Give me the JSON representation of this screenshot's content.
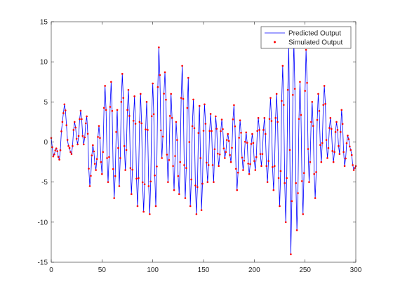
{
  "chart_data": {
    "type": "line",
    "title": "",
    "xlabel": "",
    "ylabel": "",
    "xlim": [
      0,
      300
    ],
    "ylim": [
      -15,
      15
    ],
    "x_ticks": [
      0,
      50,
      100,
      150,
      200,
      250,
      300
    ],
    "y_ticks": [
      -15,
      -10,
      -5,
      0,
      5,
      10,
      15
    ],
    "x_tick_labels": [
      "0",
      "50",
      "100",
      "150",
      "200",
      "250",
      "300"
    ],
    "y_tick_labels": [
      "-15",
      "-10",
      "-5",
      "0",
      "5",
      "10",
      "15"
    ],
    "grid": false,
    "legend_position": "top-right",
    "x_step": 1,
    "series": [
      {
        "name": "Predicted Output",
        "style": "line",
        "color": "#0000ff",
        "values": []
      },
      {
        "name": "Simulated Output",
        "style": "markers",
        "color": "#ff0000",
        "values": []
      }
    ],
    "peaks": [
      {
        "x": 0,
        "y": 0.5
      },
      {
        "x": 2,
        "y": -1.8
      },
      {
        "x": 5,
        "y": -0.8
      },
      {
        "x": 8,
        "y": -2.2
      },
      {
        "x": 11,
        "y": 2.5
      },
      {
        "x": 13,
        "y": 4.7
      },
      {
        "x": 17,
        "y": -0.5
      },
      {
        "x": 20,
        "y": -1.5
      },
      {
        "x": 23,
        "y": 2.5
      },
      {
        "x": 26,
        "y": -0.3
      },
      {
        "x": 29,
        "y": 3.9
      },
      {
        "x": 32,
        "y": -0.3
      },
      {
        "x": 35,
        "y": 3.2
      },
      {
        "x": 38,
        "y": -5.5
      },
      {
        "x": 41,
        "y": -0.4
      },
      {
        "x": 44,
        "y": -3.5
      },
      {
        "x": 47,
        "y": 2.0
      },
      {
        "x": 50,
        "y": -4.0
      },
      {
        "x": 53,
        "y": 7.0
      },
      {
        "x": 56,
        "y": -5.0
      },
      {
        "x": 59,
        "y": 7.5
      },
      {
        "x": 62,
        "y": -7.0
      },
      {
        "x": 65,
        "y": 4.0
      },
      {
        "x": 67,
        "y": -5.5
      },
      {
        "x": 70,
        "y": 8.5
      },
      {
        "x": 73,
        "y": -3.5
      },
      {
        "x": 76,
        "y": 6.5
      },
      {
        "x": 79,
        "y": -6.5
      },
      {
        "x": 82,
        "y": 5.7
      },
      {
        "x": 85,
        "y": -8.0
      },
      {
        "x": 88,
        "y": 6.0
      },
      {
        "x": 91,
        "y": -8.7
      },
      {
        "x": 94,
        "y": 5.0
      },
      {
        "x": 97,
        "y": -9.0
      },
      {
        "x": 100,
        "y": 7.3
      },
      {
        "x": 103,
        "y": -8.0
      },
      {
        "x": 106,
        "y": 11.8
      },
      {
        "x": 109,
        "y": -2.0
      },
      {
        "x": 112,
        "y": 8.7
      },
      {
        "x": 115,
        "y": -5.0
      },
      {
        "x": 118,
        "y": 6.0
      },
      {
        "x": 121,
        "y": -6.0
      },
      {
        "x": 123,
        "y": 2.5
      },
      {
        "x": 126,
        "y": -6.5
      },
      {
        "x": 129,
        "y": 9.5
      },
      {
        "x": 132,
        "y": -7.0
      },
      {
        "x": 135,
        "y": 8.0
      },
      {
        "x": 137,
        "y": -8.0
      },
      {
        "x": 140,
        "y": 5.3
      },
      {
        "x": 143,
        "y": -9.0
      },
      {
        "x": 146,
        "y": 4.5
      },
      {
        "x": 148,
        "y": -8.5
      },
      {
        "x": 151,
        "y": 4.7
      },
      {
        "x": 154,
        "y": -5.0
      },
      {
        "x": 157,
        "y": 3.5
      },
      {
        "x": 160,
        "y": -5.0
      },
      {
        "x": 162,
        "y": 3.2
      },
      {
        "x": 165,
        "y": -3.0
      },
      {
        "x": 168,
        "y": 2.8
      },
      {
        "x": 171,
        "y": -2.0
      },
      {
        "x": 174,
        "y": 1.0
      },
      {
        "x": 177,
        "y": -2.5
      },
      {
        "x": 180,
        "y": 4.6
      },
      {
        "x": 183,
        "y": -6.0
      },
      {
        "x": 186,
        "y": 2.7
      },
      {
        "x": 189,
        "y": -3.5
      },
      {
        "x": 192,
        "y": 1.2
      },
      {
        "x": 195,
        "y": -4.0
      },
      {
        "x": 198,
        "y": 1.0
      },
      {
        "x": 201,
        "y": -3.5
      },
      {
        "x": 204,
        "y": 3.0
      },
      {
        "x": 207,
        "y": -3.0
      },
      {
        "x": 210,
        "y": 3.0
      },
      {
        "x": 213,
        "y": -5.0
      },
      {
        "x": 216,
        "y": 5.5
      },
      {
        "x": 219,
        "y": -6.0
      },
      {
        "x": 222,
        "y": 6.0
      },
      {
        "x": 225,
        "y": -8.0
      },
      {
        "x": 228,
        "y": 9.5
      },
      {
        "x": 231,
        "y": -10.0
      },
      {
        "x": 234,
        "y": 12.0
      },
      {
        "x": 236,
        "y": -14.0
      },
      {
        "x": 239,
        "y": 12.5
      },
      {
        "x": 242,
        "y": -11.0
      },
      {
        "x": 245,
        "y": 7.5
      },
      {
        "x": 248,
        "y": -9.0
      },
      {
        "x": 251,
        "y": 11.5
      },
      {
        "x": 254,
        "y": -5.0
      },
      {
        "x": 257,
        "y": 5.0
      },
      {
        "x": 260,
        "y": -7.0
      },
      {
        "x": 263,
        "y": 6.0
      },
      {
        "x": 266,
        "y": -2.5
      },
      {
        "x": 269,
        "y": 7.0
      },
      {
        "x": 272,
        "y": -2.0
      },
      {
        "x": 275,
        "y": 3.0
      },
      {
        "x": 278,
        "y": -2.5
      },
      {
        "x": 281,
        "y": 2.5
      },
      {
        "x": 284,
        "y": -1.5
      },
      {
        "x": 286,
        "y": 4.0
      },
      {
        "x": 289,
        "y": -3.0
      },
      {
        "x": 292,
        "y": 0.8
      },
      {
        "x": 295,
        "y": -1.0
      },
      {
        "x": 298,
        "y": -3.5
      },
      {
        "x": 300,
        "y": -3.0
      }
    ]
  }
}
